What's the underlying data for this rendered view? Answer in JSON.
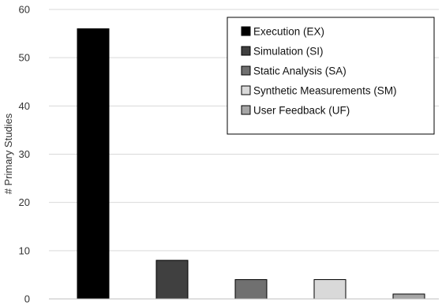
{
  "chart_data": {
    "type": "bar",
    "title": "",
    "xlabel": "",
    "ylabel": "# Primary Studies",
    "ylim": [
      0,
      60
    ],
    "yticks": [
      0,
      10,
      20,
      30,
      40,
      50,
      60
    ],
    "grid": true,
    "legend_position": "top-right",
    "series": [
      {
        "name": "Execution (EX)",
        "value": 56,
        "color": "#000000"
      },
      {
        "name": "Simulation (SI)",
        "value": 8,
        "color": "#404040"
      },
      {
        "name": "Static Analysis (SA)",
        "value": 4,
        "color": "#707070"
      },
      {
        "name": "Synthetic Measurements (SM)",
        "value": 4,
        "color": "#d9d9d9"
      },
      {
        "name": "User Feedback (UF)",
        "value": 1,
        "color": "#a6a6a6"
      }
    ]
  }
}
